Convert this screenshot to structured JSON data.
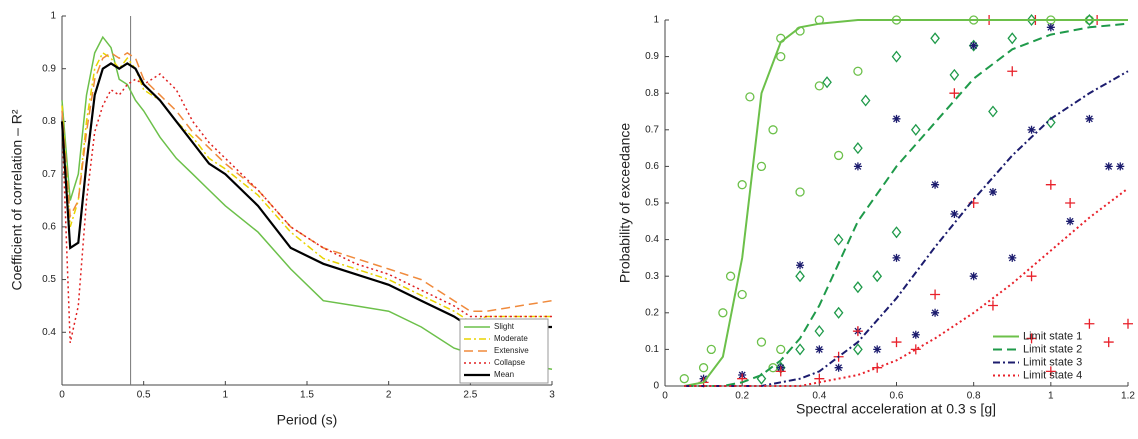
{
  "chart_data": [
    {
      "type": "line",
      "xlabel": "Period (s)",
      "ylabel": "Coefficient of correlation – R²",
      "x": [
        0,
        0.05,
        0.1,
        0.15,
        0.2,
        0.25,
        0.3,
        0.35,
        0.4,
        0.45,
        0.5,
        0.6,
        0.7,
        0.8,
        0.9,
        1,
        1.2,
        1.4,
        1.6,
        1.8,
        2,
        2.2,
        2.4,
        2.5,
        2.6,
        2.8,
        3
      ],
      "series": [
        {
          "name": "Slight",
          "color": "#6cc04a",
          "linestyle": "solid",
          "width": 1.5,
          "values": [
            0.84,
            0.65,
            0.7,
            0.85,
            0.93,
            0.96,
            0.94,
            0.88,
            0.87,
            0.84,
            0.82,
            0.77,
            0.73,
            0.7,
            0.67,
            0.64,
            0.59,
            0.52,
            0.46,
            0.45,
            0.44,
            0.41,
            0.37,
            0.36,
            0.35,
            0.34,
            0.33
          ]
        },
        {
          "name": "Moderate",
          "color": "#e8d400",
          "linestyle": "dashdot",
          "width": 1.5,
          "values": [
            0.83,
            0.6,
            0.65,
            0.8,
            0.9,
            0.93,
            0.92,
            0.9,
            0.92,
            0.9,
            0.86,
            0.84,
            0.8,
            0.77,
            0.73,
            0.71,
            0.66,
            0.59,
            0.54,
            0.52,
            0.5,
            0.47,
            0.44,
            0.42,
            0.43,
            0.43,
            0.43
          ]
        },
        {
          "name": "Extensive",
          "color": "#f08a3c",
          "linestyle": "dashed",
          "width": 1.5,
          "values": [
            0.82,
            0.62,
            0.65,
            0.78,
            0.88,
            0.92,
            0.93,
            0.92,
            0.93,
            0.92,
            0.88,
            0.85,
            0.82,
            0.78,
            0.75,
            0.72,
            0.67,
            0.6,
            0.56,
            0.54,
            0.52,
            0.5,
            0.46,
            0.44,
            0.44,
            0.45,
            0.46
          ]
        },
        {
          "name": "Collapse",
          "color": "#e02020",
          "linestyle": "dotted",
          "width": 1.5,
          "values": [
            0.8,
            0.38,
            0.45,
            0.65,
            0.78,
            0.83,
            0.86,
            0.85,
            0.87,
            0.88,
            0.87,
            0.89,
            0.86,
            0.8,
            0.76,
            0.73,
            0.67,
            0.6,
            0.56,
            0.53,
            0.51,
            0.48,
            0.45,
            0.43,
            0.43,
            0.43,
            0.43
          ]
        },
        {
          "name": "Mean",
          "color": "#000000",
          "linestyle": "solid",
          "width": 2.2,
          "values": [
            0.8,
            0.56,
            0.57,
            0.72,
            0.85,
            0.9,
            0.91,
            0.9,
            0.91,
            0.9,
            0.87,
            0.84,
            0.8,
            0.76,
            0.72,
            0.7,
            0.64,
            0.56,
            0.53,
            0.51,
            0.49,
            0.46,
            0.43,
            0.41,
            0.41,
            0.41,
            0.41
          ]
        }
      ],
      "vline": 0.42,
      "xlim": [
        0,
        3
      ],
      "xticks": [
        0,
        0.5,
        1,
        1.5,
        2,
        2.5,
        3
      ],
      "ylim": [
        0.3,
        1
      ],
      "yticks": [
        0.4,
        0.5,
        0.6,
        0.7,
        0.8,
        0.9,
        1
      ],
      "grid": false,
      "legend": "lower right"
    },
    {
      "type": "scatter",
      "xlabel": "Spectral acceleration at 0.3 s [g]",
      "ylabel": "Probability of exceedance",
      "curve_x": [
        0.05,
        0.1,
        0.15,
        0.2,
        0.25,
        0.3,
        0.35,
        0.4,
        0.5,
        0.6,
        0.7,
        0.8,
        0.9,
        1,
        1.1,
        1.2
      ],
      "series": [
        {
          "name": "Limit state 1",
          "color": "#6cc04a",
          "marker": "circle",
          "linestyle": "solid",
          "values": [
            0,
            0.01,
            0.08,
            0.35,
            0.8,
            0.94,
            0.98,
            0.99,
            1,
            1,
            1,
            1,
            1,
            1,
            1,
            1
          ],
          "points_x": [
            0.05,
            0.1,
            0.12,
            0.15,
            0.17,
            0.2,
            0.2,
            0.22,
            0.25,
            0.28,
            0.3,
            0.3,
            0.35,
            0.4,
            0.45,
            0.5,
            0.3,
            0.28,
            0.4,
            0.6,
            0.8,
            1,
            1.1,
            0.25,
            0.35
          ],
          "points_y": [
            0.02,
            0.05,
            0.1,
            0.2,
            0.3,
            0.25,
            0.55,
            0.79,
            0.6,
            0.7,
            0.9,
            0.95,
            0.97,
            0.82,
            0.63,
            0.86,
            0.1,
            0.05,
            1,
            1,
            1,
            1,
            1,
            0.12,
            0.53
          ]
        },
        {
          "name": "Limit state 2",
          "color": "#1f9a4a",
          "marker": "diamond",
          "linestyle": "dashed",
          "values": [
            0,
            0,
            0,
            0.01,
            0.03,
            0.07,
            0.13,
            0.22,
            0.45,
            0.6,
            0.72,
            0.84,
            0.92,
            0.96,
            0.98,
            0.99
          ],
          "points_x": [
            0.3,
            0.35,
            0.4,
            0.45,
            0.5,
            0.35,
            0.45,
            0.5,
            0.55,
            0.5,
            0.52,
            0.6,
            0.65,
            0.7,
            0.75,
            0.8,
            0.85,
            0.9,
            0.95,
            1,
            1.1,
            0.25,
            0.6,
            0.42
          ],
          "points_y": [
            0.05,
            0.1,
            0.15,
            0.2,
            0.1,
            0.3,
            0.4,
            0.27,
            0.3,
            0.65,
            0.78,
            0.9,
            0.7,
            0.95,
            0.85,
            0.93,
            0.75,
            0.95,
            1,
            0.72,
            1,
            0.02,
            0.42,
            0.83
          ]
        },
        {
          "name": "Limit state 3",
          "color": "#1c1c6e",
          "marker": "asterisk",
          "linestyle": "dashdot",
          "values": [
            0,
            0,
            0,
            0,
            0,
            0.01,
            0.02,
            0.04,
            0.12,
            0.24,
            0.38,
            0.51,
            0.63,
            0.73,
            0.8,
            0.86
          ],
          "points_x": [
            0.1,
            0.2,
            0.3,
            0.35,
            0.4,
            0.45,
            0.5,
            0.55,
            0.6,
            0.6,
            0.65,
            0.7,
            0.75,
            0.8,
            0.8,
            0.85,
            0.9,
            0.95,
            1,
            1.05,
            1.1,
            1.15,
            1.18,
            0.5,
            0.7
          ],
          "points_y": [
            0.02,
            0.03,
            0.05,
            0.33,
            0.1,
            0.05,
            0.15,
            0.1,
            0.73,
            0.35,
            0.14,
            0.55,
            0.47,
            0.93,
            0.3,
            0.53,
            0.35,
            0.7,
            0.98,
            0.45,
            0.73,
            0.6,
            0.6,
            0.6,
            0.2
          ]
        },
        {
          "name": "Limit state 4",
          "color": "#e8202a",
          "marker": "plus",
          "linestyle": "dotted",
          "values": [
            0,
            0,
            0,
            0,
            0,
            0,
            0,
            0.01,
            0.03,
            0.07,
            0.13,
            0.2,
            0.28,
            0.37,
            0.46,
            0.54
          ],
          "points_x": [
            0.1,
            0.2,
            0.3,
            0.4,
            0.45,
            0.5,
            0.55,
            0.6,
            0.65,
            0.7,
            0.75,
            0.8,
            0.85,
            0.9,
            0.95,
            1,
            1.05,
            1.1,
            1.15,
            1.2,
            0.95,
            1,
            0.84,
            0.96,
            1.12
          ],
          "points_y": [
            0.01,
            0.02,
            0.04,
            0.02,
            0.08,
            0.15,
            0.05,
            0.12,
            0.1,
            0.25,
            0.8,
            0.5,
            0.22,
            0.86,
            0.3,
            0.55,
            0.5,
            0.17,
            0.12,
            0.17,
            0.13,
            0.04,
            1,
            1,
            1
          ]
        }
      ],
      "xlim": [
        0,
        1.2
      ],
      "xticks": [
        0,
        0.2,
        0.4,
        0.6,
        0.8,
        1,
        1.2
      ],
      "ylim": [
        0,
        1
      ],
      "yticks": [
        0,
        0.1,
        0.2,
        0.3,
        0.4,
        0.5,
        0.6,
        0.7,
        0.8,
        0.9,
        1
      ],
      "grid": false,
      "legend": "lower right"
    }
  ]
}
